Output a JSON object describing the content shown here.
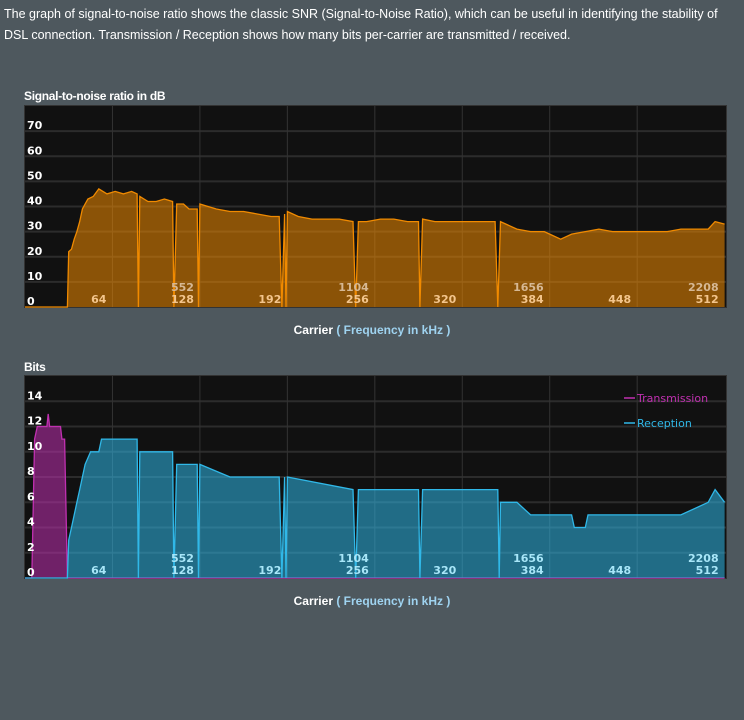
{
  "intro": {
    "line1": "The graph of signal-to-noise ratio shows the classic SNR (Signal-to-Noise Ratio), which can be useful in identifying the stability of",
    "line2": "DSL connection. Transmission / Reception shows how many bits per-carrier are transmitted / received."
  },
  "chart_data": [
    {
      "type": "area",
      "title": "Signal-to-noise ratio in dB",
      "xlabel": "Carrier",
      "xlabel_unit": "( Frequency in kHz )",
      "xlim": [
        0,
        512
      ],
      "ylim": [
        0,
        80
      ],
      "yticks": [
        0,
        10,
        20,
        30,
        40,
        50,
        60,
        70
      ],
      "xticks": [
        64,
        128,
        192,
        256,
        320,
        384,
        448,
        512
      ],
      "xticks_khz": {
        "128": "552",
        "256": "1104",
        "384": "1656",
        "512": "2208"
      },
      "grid": true,
      "color": "#f08a00",
      "points": [
        [
          0,
          0
        ],
        [
          31,
          0
        ],
        [
          32,
          22
        ],
        [
          34,
          23
        ],
        [
          36,
          27
        ],
        [
          38,
          30
        ],
        [
          40,
          34
        ],
        [
          42,
          39
        ],
        [
          44,
          41
        ],
        [
          46,
          43
        ],
        [
          50,
          44
        ],
        [
          54,
          47
        ],
        [
          60,
          45
        ],
        [
          66,
          46
        ],
        [
          72,
          45
        ],
        [
          78,
          46
        ],
        [
          82,
          45
        ],
        [
          83,
          0
        ],
        [
          84,
          44
        ],
        [
          90,
          42
        ],
        [
          96,
          42
        ],
        [
          102,
          43
        ],
        [
          108,
          42
        ],
        [
          109,
          0
        ],
        [
          111,
          41
        ],
        [
          116,
          41
        ],
        [
          120,
          39
        ],
        [
          126,
          39
        ],
        [
          127,
          0
        ],
        [
          128,
          41
        ],
        [
          134,
          40
        ],
        [
          140,
          39
        ],
        [
          150,
          38
        ],
        [
          160,
          38
        ],
        [
          170,
          37
        ],
        [
          180,
          36
        ],
        [
          186,
          36
        ],
        [
          188,
          0
        ],
        [
          190,
          37
        ],
        [
          191,
          0
        ],
        [
          192,
          38
        ],
        [
          200,
          36
        ],
        [
          210,
          35
        ],
        [
          220,
          35
        ],
        [
          230,
          35
        ],
        [
          240,
          34
        ],
        [
          242,
          0
        ],
        [
          244,
          34
        ],
        [
          250,
          34
        ],
        [
          260,
          35
        ],
        [
          270,
          35
        ],
        [
          280,
          34
        ],
        [
          288,
          34
        ],
        [
          289,
          0
        ],
        [
          291,
          35
        ],
        [
          300,
          34
        ],
        [
          310,
          34
        ],
        [
          320,
          34
        ],
        [
          330,
          34
        ],
        [
          344,
          34
        ],
        [
          346,
          0
        ],
        [
          348,
          34
        ],
        [
          360,
          31
        ],
        [
          370,
          30
        ],
        [
          380,
          30
        ],
        [
          384,
          29
        ],
        [
          392,
          27
        ],
        [
          400,
          29
        ],
        [
          410,
          30
        ],
        [
          420,
          31
        ],
        [
          430,
          30
        ],
        [
          440,
          30
        ],
        [
          450,
          30
        ],
        [
          460,
          30
        ],
        [
          470,
          30
        ],
        [
          480,
          31
        ],
        [
          490,
          31
        ],
        [
          500,
          31
        ],
        [
          505,
          34
        ],
        [
          512,
          33
        ]
      ]
    },
    {
      "type": "area",
      "title": "Bits",
      "xlabel": "Carrier",
      "xlabel_unit": "( Frequency in kHz )",
      "xlim": [
        0,
        512
      ],
      "ylim": [
        0,
        16
      ],
      "yticks": [
        0,
        2,
        4,
        6,
        8,
        10,
        12,
        14
      ],
      "xticks": [
        64,
        128,
        192,
        256,
        320,
        384,
        448,
        512
      ],
      "xticks_khz": {
        "128": "552",
        "256": "1104",
        "384": "1656",
        "512": "2208"
      },
      "grid": true,
      "legend": "top-right",
      "series": [
        {
          "name": "Transmission",
          "color": "#c030b0",
          "points": [
            [
              0,
              0
            ],
            [
              5,
              0
            ],
            [
              7,
              11
            ],
            [
              9,
              12
            ],
            [
              16,
              12
            ],
            [
              17,
              13
            ],
            [
              18,
              12
            ],
            [
              26,
              12
            ],
            [
              27,
              11
            ],
            [
              29,
              11
            ],
            [
              31,
              0
            ],
            [
              512,
              0
            ]
          ]
        },
        {
          "name": "Reception",
          "color": "#30b8e8",
          "points": [
            [
              0,
              0
            ],
            [
              31,
              0
            ],
            [
              32,
              3
            ],
            [
              34,
              4
            ],
            [
              36,
              5
            ],
            [
              38,
              6
            ],
            [
              40,
              7
            ],
            [
              42,
              8
            ],
            [
              44,
              9
            ],
            [
              48,
              10
            ],
            [
              54,
              10
            ],
            [
              56,
              11
            ],
            [
              82,
              11
            ],
            [
              83,
              0
            ],
            [
              84,
              10
            ],
            [
              108,
              10
            ],
            [
              109,
              0
            ],
            [
              111,
              9
            ],
            [
              126,
              9
            ],
            [
              127,
              0
            ],
            [
              128,
              9
            ],
            [
              150,
              8
            ],
            [
              186,
              8
            ],
            [
              188,
              0
            ],
            [
              190,
              8
            ],
            [
              191,
              0
            ],
            [
              192,
              8
            ],
            [
              240,
              7
            ],
            [
              242,
              0
            ],
            [
              244,
              7
            ],
            [
              288,
              7
            ],
            [
              289,
              0
            ],
            [
              291,
              7
            ],
            [
              346,
              7
            ],
            [
              347,
              0
            ],
            [
              348,
              6
            ],
            [
              360,
              6
            ],
            [
              370,
              5
            ],
            [
              400,
              5
            ],
            [
              402,
              4
            ],
            [
              410,
              4
            ],
            [
              412,
              5
            ],
            [
              440,
              5
            ],
            [
              460,
              5
            ],
            [
              480,
              5
            ],
            [
              500,
              6
            ],
            [
              505,
              7
            ],
            [
              512,
              6
            ]
          ]
        }
      ]
    }
  ]
}
